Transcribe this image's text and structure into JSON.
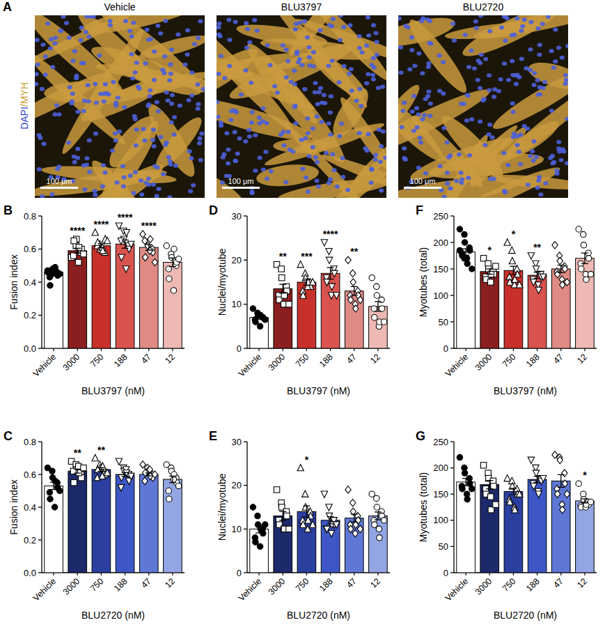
{
  "panel_a": {
    "letter": "A",
    "stain_label": [
      "DAPI",
      "/",
      "MYH"
    ],
    "stain_colors": [
      "#3346e0",
      "#c99a2e",
      "#c99a2e"
    ],
    "images": [
      {
        "title": "Vehicle",
        "scale_bar": "100 μm"
      },
      {
        "title": "BLU3797",
        "scale_bar": "100 μm"
      },
      {
        "title": "BLU2720",
        "scale_bar": "100 μm"
      }
    ]
  },
  "chart_data": [
    {
      "type": "bar",
      "panel": "B",
      "y_label": "Fusion index",
      "x_label": "BLU3797 (nM)",
      "categories": [
        "Vehicle",
        "3000",
        "750",
        "188",
        "47",
        "12"
      ],
      "values": [
        0.46,
        0.59,
        0.62,
        0.63,
        0.61,
        0.52
      ],
      "errors": [
        0.01,
        0.015,
        0.012,
        0.025,
        0.017,
        0.026
      ],
      "colors": [
        "#ffffff",
        "#8b1f1f",
        "#c8302b",
        "#d9534f",
        "#e08a84",
        "#eeb9b4"
      ],
      "markers": [
        "filled_circle",
        "square",
        "triangle",
        "triangle_down",
        "diamond",
        "circle"
      ],
      "points": [
        [
          0.47,
          0.45,
          0.48,
          0.46,
          0.44,
          0.43,
          0.38,
          0.47,
          0.49,
          0.45,
          0.46,
          0.47
        ],
        [
          0.55,
          0.62,
          0.66,
          0.58,
          0.6,
          0.56,
          0.65,
          0.52,
          0.61,
          0.57
        ],
        [
          0.7,
          0.63,
          0.6,
          0.58,
          0.66,
          0.62,
          0.64,
          0.61,
          0.59,
          0.65
        ],
        [
          0.74,
          0.71,
          0.66,
          0.62,
          0.6,
          0.65,
          0.55,
          0.48,
          0.7,
          0.63
        ],
        [
          0.69,
          0.64,
          0.62,
          0.6,
          0.58,
          0.65,
          0.55,
          0.59,
          0.66,
          0.52
        ],
        [
          0.62,
          0.57,
          0.55,
          0.5,
          0.52,
          0.48,
          0.42,
          0.35,
          0.6,
          0.54
        ]
      ],
      "significance": [
        null,
        "****",
        "****",
        "****",
        "****",
        null
      ],
      "ylim": [
        0,
        0.8
      ],
      "yticks": [
        {
          "value": 0,
          "label": "0.0"
        },
        {
          "value": 0.2,
          "label": "0.2"
        },
        {
          "value": 0.4,
          "label": "0.4"
        },
        {
          "value": 0.6,
          "label": "0.6"
        },
        {
          "value": 0.8,
          "label": "0.8"
        }
      ]
    },
    {
      "type": "bar",
      "panel": "C",
      "y_label": "Fusion index",
      "x_label": "BLU2720 (nM)",
      "categories": [
        "Vehicle",
        "3000",
        "750",
        "188",
        "47",
        "12"
      ],
      "values": [
        0.53,
        0.62,
        0.63,
        0.6,
        0.6,
        0.57
      ],
      "errors": [
        0.022,
        0.012,
        0.011,
        0.012,
        0.009,
        0.02
      ],
      "colors": [
        "#ffffff",
        "#1c2a6b",
        "#2b3fa0",
        "#3d57c6",
        "#5f78d6",
        "#93a5e2"
      ],
      "markers": [
        "filled_circle",
        "square",
        "triangle",
        "triangle_down",
        "diamond",
        "circle"
      ],
      "points": [
        [
          0.64,
          0.62,
          0.58,
          0.55,
          0.52,
          0.49,
          0.45,
          0.4,
          0.56,
          0.5
        ],
        [
          0.68,
          0.66,
          0.63,
          0.6,
          0.58,
          0.62,
          0.55,
          0.65,
          0.61,
          0.64
        ],
        [
          0.7,
          0.66,
          0.64,
          0.62,
          0.6,
          0.58,
          0.63,
          0.59,
          0.65,
          0.61
        ],
        [
          0.68,
          0.64,
          0.62,
          0.6,
          0.56,
          0.52,
          0.58,
          0.63,
          0.61,
          0.59
        ],
        [
          0.66,
          0.64,
          0.62,
          0.6,
          0.58,
          0.56,
          0.61,
          0.63,
          0.59,
          0.6
        ],
        [
          0.66,
          0.64,
          0.62,
          0.58,
          0.55,
          0.5,
          0.45,
          0.57,
          0.6,
          0.53
        ]
      ],
      "significance": [
        null,
        "**",
        "**",
        null,
        null,
        null
      ],
      "ylim": [
        0,
        0.8
      ],
      "yticks": [
        {
          "value": 0,
          "label": "0.0"
        },
        {
          "value": 0.2,
          "label": "0.2"
        },
        {
          "value": 0.4,
          "label": "0.4"
        },
        {
          "value": 0.6,
          "label": "0.6"
        },
        {
          "value": 0.8,
          "label": "0.8"
        }
      ]
    },
    {
      "type": "bar",
      "panel": "D",
      "y_label": "Nuclei/myotube",
      "x_label": "BLU3797 (nM)",
      "categories": [
        "Vehicle",
        "3000",
        "750",
        "188",
        "47",
        "12"
      ],
      "values": [
        7,
        13.5,
        15,
        17,
        13,
        9.5
      ],
      "errors": [
        0.4,
        1,
        0.7,
        1.3,
        1,
        1.1
      ],
      "colors": [
        "#ffffff",
        "#8b1f1f",
        "#c8302b",
        "#d9534f",
        "#e08a84",
        "#eeb9b4"
      ],
      "markers": [
        "filled_circle",
        "square",
        "triangle",
        "triangle_down",
        "diamond",
        "circle"
      ],
      "points": [
        [
          9,
          8,
          7.5,
          7,
          7,
          6.5,
          6,
          5,
          7.5,
          6.5
        ],
        [
          19,
          18,
          16,
          14,
          13,
          12,
          11,
          10,
          12,
          10
        ],
        [
          19,
          17,
          16,
          15,
          14,
          13,
          12,
          14,
          15,
          15
        ],
        [
          24,
          22,
          20,
          18,
          17,
          16,
          15,
          12,
          14,
          12
        ],
        [
          20,
          17,
          15,
          13,
          12,
          12,
          11,
          10,
          9,
          11
        ],
        [
          16,
          14,
          12,
          11,
          9,
          9,
          7,
          5,
          6,
          6
        ]
      ],
      "significance": [
        null,
        "**",
        "***",
        "****",
        "**",
        null
      ],
      "ylim": [
        0,
        30
      ],
      "yticks": [
        0,
        10,
        20,
        30
      ]
    },
    {
      "type": "bar",
      "panel": "E",
      "y_label": "Nuclei/myotube",
      "x_label": "BLU2720 (nM)",
      "categories": [
        "Vehicle",
        "3000",
        "750",
        "188",
        "47",
        "12"
      ],
      "values": [
        10,
        13,
        14,
        12,
        12.5,
        13
      ],
      "errors": [
        0.9,
        1,
        1.3,
        0.8,
        0.9,
        0.9
      ],
      "colors": [
        "#ffffff",
        "#1c2a6b",
        "#2b3fa0",
        "#3d57c6",
        "#5f78d6",
        "#93a5e2"
      ],
      "markers": [
        "filled_circle",
        "square",
        "triangle",
        "triangle_down",
        "diamond",
        "circle"
      ],
      "points": [
        [
          15,
          13,
          11,
          10,
          9,
          8,
          7,
          6,
          10,
          11
        ],
        [
          19,
          16,
          15,
          14,
          13,
          12,
          11,
          10,
          10,
          10
        ],
        [
          24,
          18,
          15,
          14,
          13,
          12,
          11,
          10,
          12,
          11
        ],
        [
          18,
          15,
          13,
          12,
          11,
          10,
          10,
          9,
          11,
          11
        ],
        [
          19,
          16,
          14,
          13,
          12,
          11,
          10,
          9,
          11,
          10
        ],
        [
          18,
          17,
          15,
          14,
          13,
          12,
          11,
          10,
          8,
          12
        ]
      ],
      "significance": [
        null,
        null,
        "*",
        null,
        null,
        null
      ],
      "ylim": [
        0,
        30
      ],
      "yticks": [
        0,
        10,
        20,
        30
      ]
    },
    {
      "type": "bar",
      "panel": "F",
      "y_label": "Myotubes (total)",
      "x_label": "BLU3797 (nM)",
      "categories": [
        "Vehicle",
        "3000",
        "750",
        "188",
        "47",
        "12"
      ],
      "values": [
        182,
        145,
        147,
        138,
        150,
        170
      ],
      "errors": [
        6,
        5,
        8,
        6,
        7,
        10
      ],
      "colors": [
        "#ffffff",
        "#8b1f1f",
        "#c8302b",
        "#d9534f",
        "#e08a84",
        "#eeb9b4"
      ],
      "markers": [
        "filled_circle",
        "square",
        "triangle",
        "triangle_down",
        "diamond",
        "circle"
      ],
      "points": [
        [
          225,
          215,
          200,
          190,
          185,
          180,
          175,
          170,
          160,
          150,
          185,
          170
        ],
        [
          170,
          160,
          150,
          145,
          140,
          135,
          130,
          125,
          140,
          155
        ],
        [
          200,
          185,
          165,
          150,
          140,
          135,
          125,
          120,
          130,
          120
        ],
        [
          175,
          160,
          150,
          140,
          135,
          130,
          125,
          120,
          110,
          135
        ],
        [
          195,
          175,
          165,
          155,
          150,
          145,
          140,
          130,
          120,
          125
        ],
        [
          225,
          215,
          195,
          180,
          170,
          160,
          150,
          140,
          130,
          140
        ]
      ],
      "significance": [
        null,
        "*",
        "*",
        "**",
        null,
        null
      ],
      "ylim": [
        0,
        250
      ],
      "yticks": [
        0,
        50,
        100,
        150,
        200,
        250
      ]
    },
    {
      "type": "bar",
      "panel": "G",
      "y_label": "Myotubes (total)",
      "x_label": "BLU2720 (nM)",
      "categories": [
        "Vehicle",
        "3000",
        "750",
        "188",
        "47",
        "12"
      ],
      "values": [
        173,
        168,
        155,
        178,
        175,
        137
      ],
      "errors": [
        7,
        8,
        6,
        6,
        12,
        4
      ],
      "colors": [
        "#ffffff",
        "#1c2a6b",
        "#2b3fa0",
        "#3d57c6",
        "#5f78d6",
        "#93a5e2"
      ],
      "markers": [
        "filled_circle",
        "square",
        "triangle",
        "triangle_down",
        "diamond",
        "circle"
      ],
      "points": [
        [
          220,
          200,
          190,
          180,
          170,
          165,
          160,
          150,
          140,
          160
        ],
        [
          205,
          190,
          180,
          175,
          165,
          160,
          150,
          145,
          120,
          130
        ],
        [
          180,
          175,
          165,
          160,
          150,
          140,
          135,
          125,
          120,
          150
        ],
        [
          215,
          200,
          190,
          180,
          175,
          170,
          165,
          155,
          150,
          180
        ],
        [
          225,
          220,
          215,
          190,
          170,
          160,
          150,
          130,
          120,
          150
        ],
        [
          170,
          150,
          140,
          135,
          130,
          128,
          125,
          125,
          130,
          135
        ]
      ],
      "significance": [
        null,
        null,
        null,
        null,
        null,
        "*"
      ],
      "ylim": [
        0,
        250
      ],
      "yticks": [
        0,
        50,
        100,
        150,
        200,
        250
      ]
    }
  ]
}
